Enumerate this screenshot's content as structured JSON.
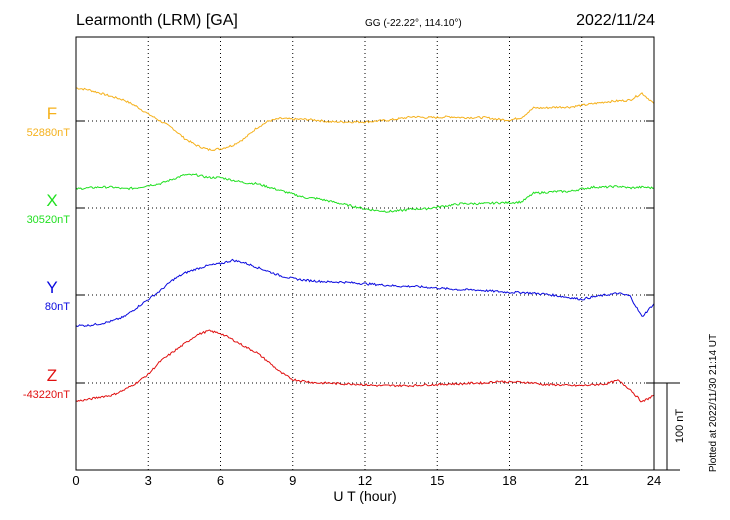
{
  "header": {
    "station": "Learmonth (LRM)  [GA]",
    "coords": "GG (-22.22°, 114.10°)",
    "date": "2022/11/24"
  },
  "side_note": "Plotted at 2022/11/30 21:14 UT",
  "scale_label": "100 nT",
  "chart_data": {
    "type": "line",
    "xlabel": "U T (hour)",
    "xlim": [
      0,
      24
    ],
    "xticks": [
      0,
      3,
      6,
      9,
      12,
      15,
      18,
      21,
      24
    ],
    "scale_bar_nT": 100,
    "series": [
      {
        "name": "F",
        "baseline_label": "52880nT",
        "color": "#f5b11c",
        "x": [
          0,
          0.5,
          1,
          1.5,
          2,
          2.5,
          3,
          3.5,
          4,
          4.5,
          5,
          5.5,
          6,
          6.5,
          7,
          7.5,
          8,
          8.5,
          9,
          9.5,
          10,
          10.5,
          11,
          11.5,
          12,
          12.5,
          13,
          13.5,
          14,
          14.5,
          15,
          15.5,
          16,
          16.5,
          17,
          17.5,
          18,
          18.5,
          19,
          19.5,
          20,
          20.5,
          21,
          21.5,
          22,
          22.5,
          23,
          23.5,
          24
        ],
        "y": [
          38,
          36,
          32,
          28,
          24,
          17,
          8,
          0,
          -8,
          -20,
          -28,
          -33,
          -32,
          -28,
          -20,
          -8,
          0,
          3,
          2,
          2,
          1,
          -1,
          -1,
          -1,
          -1,
          0,
          1,
          3,
          5,
          4,
          4,
          5,
          4,
          4,
          4,
          2,
          1,
          4,
          15,
          15,
          16,
          16,
          18,
          20,
          22,
          23,
          24,
          32,
          20
        ]
      },
      {
        "name": "X",
        "baseline_label": "30520nT",
        "color": "#21e021",
        "x": [
          0,
          0.5,
          1,
          1.5,
          2,
          2.5,
          3,
          3.5,
          4,
          4.5,
          5,
          5.5,
          6,
          6.5,
          7,
          7.5,
          8,
          8.5,
          9,
          9.5,
          10,
          10.5,
          11,
          11.5,
          12,
          12.5,
          13,
          13.5,
          14,
          14.5,
          15,
          15.5,
          16,
          16.5,
          17,
          17.5,
          18,
          18.5,
          19,
          19.5,
          20,
          20.5,
          21,
          21.5,
          22,
          22.5,
          23,
          23.5,
          24
        ],
        "y": [
          22,
          23,
          24,
          24,
          22,
          23,
          26,
          28,
          33,
          38,
          38,
          35,
          35,
          32,
          29,
          28,
          24,
          20,
          16,
          12,
          11,
          8,
          5,
          2,
          -1,
          -3,
          -4,
          -3,
          -1,
          -1,
          1,
          3,
          5,
          5,
          5,
          6,
          6,
          7,
          17,
          18,
          19,
          19,
          22,
          24,
          24,
          25,
          23,
          24,
          23
        ]
      },
      {
        "name": "Y",
        "baseline_label": "80nT",
        "color": "#0a0adf",
        "x": [
          0,
          0.5,
          1,
          1.5,
          2,
          2.5,
          3,
          3.5,
          4,
          4.5,
          5,
          5.5,
          6,
          6.5,
          7,
          7.5,
          8,
          8.5,
          9,
          9.5,
          10,
          10.5,
          11,
          11.5,
          12,
          12.5,
          13,
          13.5,
          14,
          14.5,
          15,
          15.5,
          16,
          16.5,
          17,
          17.5,
          18,
          18.5,
          19,
          19.5,
          20,
          20.5,
          21,
          21.5,
          22,
          22.5,
          23,
          23.5,
          24
        ],
        "y": [
          -35,
          -35,
          -33,
          -30,
          -25,
          -15,
          -5,
          5,
          17,
          25,
          30,
          34,
          36,
          40,
          37,
          32,
          27,
          22,
          19,
          17,
          16,
          15,
          15,
          14,
          13,
          12,
          11,
          10,
          10,
          9,
          8,
          7,
          6,
          6,
          5,
          4,
          3,
          3,
          2,
          1,
          -1,
          -3,
          -5,
          -2,
          0,
          2,
          -1,
          -25,
          -10
        ]
      },
      {
        "name": "Z",
        "baseline_label": "-43220nT",
        "color": "#e01010",
        "x": [
          0,
          0.5,
          1,
          1.5,
          2,
          2.5,
          3,
          3.5,
          4,
          4.5,
          5,
          5.5,
          6,
          6.5,
          7,
          7.5,
          8,
          8.5,
          9,
          9.5,
          10,
          10.5,
          11,
          11.5,
          12,
          12.5,
          13,
          13.5,
          14,
          14.5,
          15,
          15.5,
          16,
          16.5,
          17,
          17.5,
          18,
          18.5,
          19,
          19.5,
          20,
          20.5,
          21,
          21.5,
          22,
          22.5,
          23,
          23.5,
          24
        ],
        "y": [
          -21,
          -19,
          -16,
          -14,
          -8,
          0,
          10,
          25,
          35,
          45,
          55,
          60,
          57,
          50,
          42,
          35,
          24,
          12,
          4,
          2,
          0,
          0,
          -1,
          -1,
          -2,
          -3,
          -3,
          -3,
          -3,
          -2,
          -2,
          -1,
          -1,
          0,
          0,
          2,
          1,
          1,
          0,
          -2,
          -2,
          -3,
          -3,
          -2,
          -1,
          3,
          -7,
          -22,
          -14
        ]
      }
    ]
  }
}
